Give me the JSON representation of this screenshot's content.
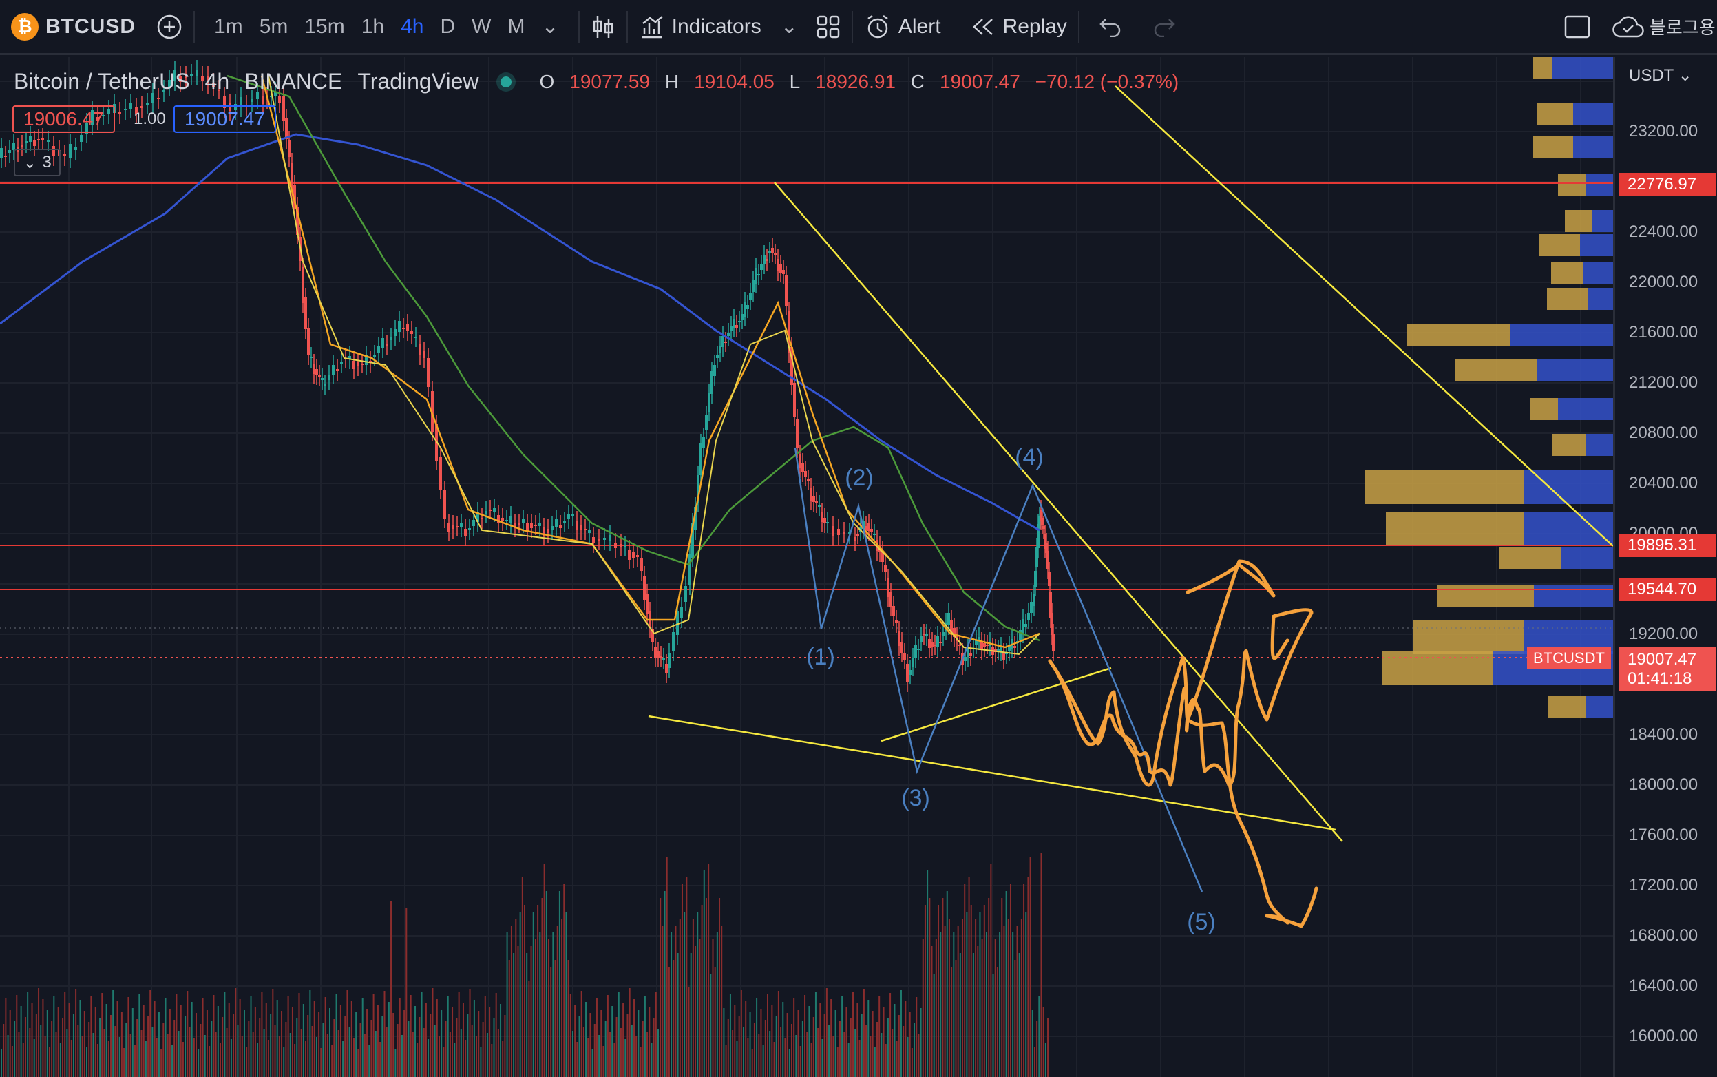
{
  "toolbar": {
    "symbol": "BTCUSD",
    "symbol_logo": "₿",
    "timeframes": [
      "1m",
      "5m",
      "15m",
      "1h",
      "4h",
      "D",
      "W",
      "M"
    ],
    "active_timeframe": "4h",
    "indicators_label": "Indicators",
    "alert_label": "Alert",
    "replay_label": "Replay",
    "right_label": "블로그용"
  },
  "legend": {
    "pair": "Bitcoin / TetherUS",
    "interval": "4h",
    "exchange": "BINANCE",
    "source": "TradingView",
    "open_label": "O",
    "open": "19077.59",
    "high_label": "H",
    "high": "19104.05",
    "low_label": "L",
    "low": "18926.91",
    "close_label": "C",
    "close": "19007.47",
    "change": "−70.12 (−0.37%)",
    "bid": "19006.47",
    "qty": "1.00",
    "ask": "19007.47",
    "indicator_count": "3"
  },
  "price_scale": {
    "currency": "USDT",
    "ticks": [
      "23200.00",
      "22400.00",
      "22000.00",
      "21600.00",
      "21200.00",
      "20800.00",
      "20400.00",
      "20000.00",
      "19200.00",
      "18400.00",
      "18000.00",
      "17600.00",
      "17200.00",
      "16800.00",
      "16400.00",
      "16000.00"
    ],
    "tag_22776": "22776.97",
    "tag_19895": "19895.31",
    "tag_19544": "19544.70",
    "tag_symbol": "BTCUSDT",
    "tag_last": "19007.47",
    "tag_timer": "01:41:18"
  },
  "wave_labels": [
    "(1)",
    "(2)",
    "(3)",
    "(4)",
    "(5)"
  ],
  "colors": {
    "background": "#131722",
    "up": "#26a69a",
    "down": "#ef5350",
    "accent": "#2962ff",
    "trendline": "#f5e83f",
    "wave": "#4a7fc0",
    "annotation": "#f5a13c",
    "ma_blue": "#3454d1",
    "ma_green": "#4c9a3a",
    "ma_orange": "#f5a623",
    "ma_yellow": "#e8d44d"
  }
}
